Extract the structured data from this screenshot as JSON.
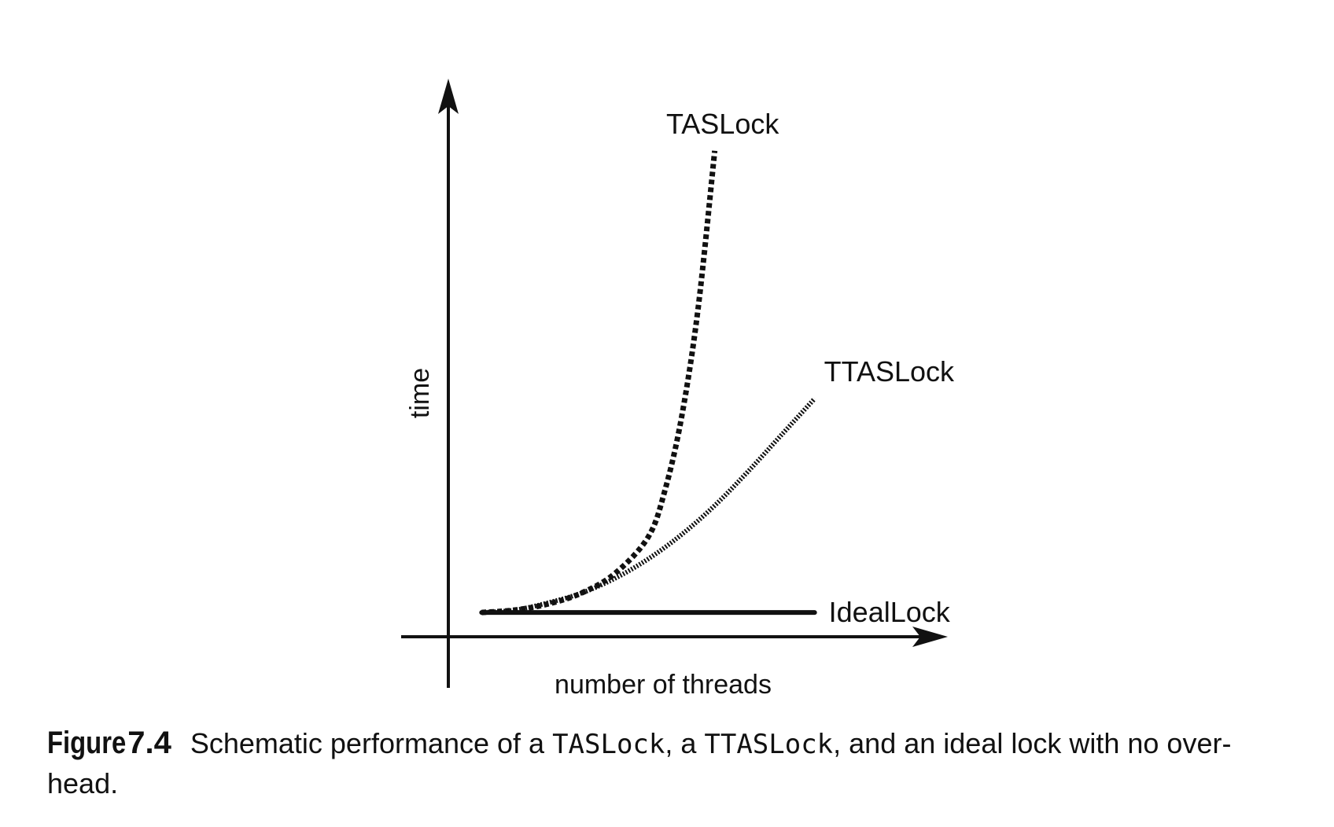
{
  "chart_data": {
    "type": "line",
    "title": "",
    "xlabel": "number of threads",
    "ylabel": "time",
    "grid": false,
    "legend": "inline labels at line ends",
    "x": [
      1,
      2,
      3,
      4,
      5,
      6,
      7,
      8,
      9,
      10,
      11
    ],
    "series": [
      {
        "name": "TASLock",
        "style": "dashed",
        "color": "#111111",
        "x": [
          1,
          2,
          3,
          4,
          5,
          6,
          6.5,
          7,
          7.5,
          8
        ],
        "values": [
          1,
          1.1,
          1.35,
          1.8,
          2.6,
          4.1,
          6.0,
          9.0,
          13.5,
          20
        ]
      },
      {
        "name": "TTASLock",
        "style": "dotted",
        "color": "#111111",
        "x": [
          1,
          2,
          3,
          4,
          5,
          6,
          7,
          8,
          9,
          10,
          11
        ],
        "values": [
          1,
          1.1,
          1.4,
          1.8,
          2.4,
          3.2,
          4.2,
          5.4,
          6.8,
          8.3,
          9.8
        ]
      },
      {
        "name": "IdealLock",
        "style": "solid",
        "color": "#111111",
        "x": [
          1,
          11
        ],
        "values": [
          1,
          1
        ]
      }
    ],
    "xlim": [
      0,
      15
    ],
    "ylim": [
      0,
      22
    ]
  },
  "caption": {
    "label": "Figure",
    "number": "7.4",
    "text_before": "Schematic performance of a ",
    "code1": "TASLock",
    "text_middle": ", a ",
    "code2": "TTASLock",
    "text_after": ", and an ideal lock with no over-head."
  }
}
